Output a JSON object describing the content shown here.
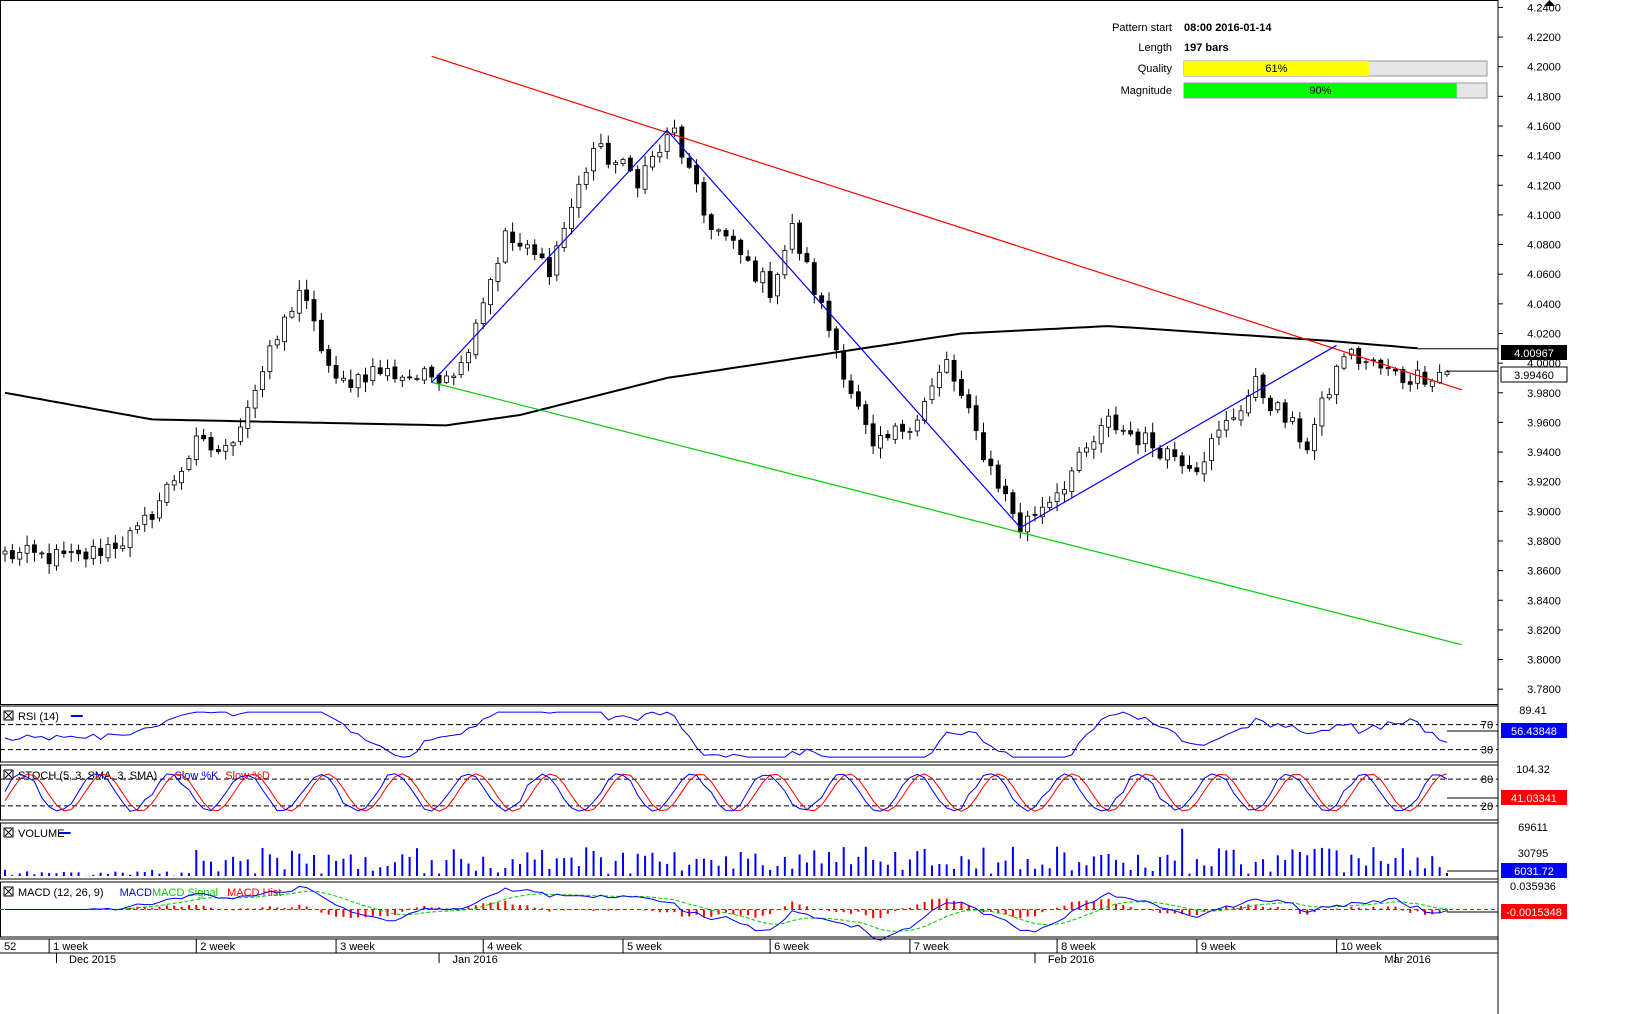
{
  "chart_data": {
    "type": "candlestick",
    "pattern_info": [
      {
        "label": "Pattern start",
        "value": "08:00 2016-01-14"
      },
      {
        "label": "Length",
        "value": "197 bars"
      },
      {
        "label": "Quality",
        "value": "61%",
        "percent": 61,
        "color": "#ffff00"
      },
      {
        "label": "Magnitude",
        "value": "90%",
        "percent": 90,
        "color": "#00ff00"
      }
    ],
    "price_axis": {
      "min": 3.77,
      "max": 4.245,
      "ticks": [
        "4.2400",
        "4.2200",
        "4.2000",
        "4.1800",
        "4.1600",
        "4.1400",
        "4.1200",
        "4.1000",
        "4.0800",
        "4.0600",
        "4.0400",
        "4.0200",
        "4.0000",
        "3.9800",
        "3.9600",
        "3.9400",
        "3.9200",
        "3.9000",
        "3.8800",
        "3.8600",
        "3.8400",
        "3.8200",
        "3.8000",
        "3.7800"
      ],
      "tick_values": [
        4.24,
        4.22,
        4.2,
        4.18,
        4.16,
        4.14,
        4.12,
        4.1,
        4.08,
        4.06,
        4.04,
        4.02,
        4.0,
        3.98,
        3.96,
        3.94,
        3.92,
        3.9,
        3.88,
        3.86,
        3.84,
        3.82,
        3.8,
        3.78
      ],
      "ma_value_label": "4.00967",
      "last_price_label": "3.99460"
    },
    "bar_count": 197,
    "key_points": [
      {
        "bar": 0,
        "price": 3.871
      },
      {
        "bar": 10,
        "price": 3.868
      },
      {
        "bar": 18,
        "price": 3.885
      },
      {
        "bar": 26,
        "price": 3.945
      },
      {
        "bar": 30,
        "price": 3.94
      },
      {
        "bar": 36,
        "price": 4.005
      },
      {
        "bar": 40,
        "price": 4.05
      },
      {
        "bar": 45,
        "price": 3.985
      },
      {
        "bar": 50,
        "price": 3.995
      },
      {
        "bar": 57,
        "price": 3.99
      },
      {
        "bar": 62,
        "price": 3.998
      },
      {
        "bar": 64,
        "price": 4.03
      },
      {
        "bar": 68,
        "price": 4.085
      },
      {
        "bar": 74,
        "price": 4.065
      },
      {
        "bar": 80,
        "price": 4.145
      },
      {
        "bar": 86,
        "price": 4.125
      },
      {
        "bar": 91,
        "price": 4.156
      },
      {
        "bar": 95,
        "price": 4.1
      },
      {
        "bar": 104,
        "price": 4.05
      },
      {
        "bar": 107,
        "price": 4.09
      },
      {
        "bar": 113,
        "price": 4.01
      },
      {
        "bar": 118,
        "price": 3.94
      },
      {
        "bar": 124,
        "price": 3.965
      },
      {
        "bar": 128,
        "price": 4.0
      },
      {
        "bar": 133,
        "price": 3.94
      },
      {
        "bar": 138,
        "price": 3.889
      },
      {
        "bar": 144,
        "price": 3.92
      },
      {
        "bar": 150,
        "price": 3.96
      },
      {
        "bar": 156,
        "price": 3.945
      },
      {
        "bar": 162,
        "price": 3.932
      },
      {
        "bar": 170,
        "price": 3.985
      },
      {
        "bar": 177,
        "price": 3.945
      },
      {
        "bar": 182,
        "price": 4.007
      },
      {
        "bar": 190,
        "price": 3.99
      },
      {
        "bar": 196,
        "price": 3.9946
      }
    ],
    "moving_average_points": [
      {
        "bar": 0,
        "price": 3.98
      },
      {
        "bar": 20,
        "price": 3.962
      },
      {
        "bar": 40,
        "price": 3.96
      },
      {
        "bar": 60,
        "price": 3.958
      },
      {
        "bar": 70,
        "price": 3.965
      },
      {
        "bar": 90,
        "price": 3.99
      },
      {
        "bar": 110,
        "price": 4.005
      },
      {
        "bar": 130,
        "price": 4.02
      },
      {
        "bar": 150,
        "price": 4.025
      },
      {
        "bar": 165,
        "price": 4.02
      },
      {
        "bar": 180,
        "price": 4.015
      },
      {
        "bar": 192,
        "price": 4.01
      }
    ],
    "pattern_lines": {
      "resistance": {
        "color": "#ff0000",
        "from": {
          "bar": 58,
          "price": 4.207
        },
        "to": {
          "bar": 198,
          "price": 3.982
        }
      },
      "support": {
        "color": "#00cc00",
        "from": {
          "bar": 58,
          "price": 3.987
        },
        "to": {
          "bar": 198,
          "price": 3.81
        }
      },
      "zigzag": {
        "color": "#0000ff",
        "points": [
          {
            "bar": 58,
            "price": 3.987
          },
          {
            "bar": 90,
            "price": 4.157
          },
          {
            "bar": 138,
            "price": 3.889
          },
          {
            "bar": 181,
            "price": 4.012
          }
        ]
      }
    },
    "time_axis": {
      "week_labels": [
        "52",
        "1 week",
        "2 week",
        "3 week",
        "4 week",
        "5 week",
        "6 week",
        "7 week",
        "8 week",
        "9 week",
        "10 week"
      ],
      "week_bars": [
        0,
        6,
        26,
        45,
        65,
        84,
        104,
        123,
        143,
        162,
        181
      ],
      "month_labels": [
        "Dec 2015",
        "Jan 2016",
        "Feb 2016",
        "Mar 2016"
      ],
      "month_bars": [
        10,
        62,
        143,
        192
      ]
    },
    "indicators": [
      {
        "name": "RSI",
        "title": "RSI (14)",
        "series_colors": [
          "#0000ff"
        ],
        "levels": [
          70,
          30
        ],
        "level_labels": [
          "70",
          "30"
        ],
        "top_label": "89.41",
        "value_labels": [
          "56.43848"
        ],
        "range": [
          15,
          95
        ]
      },
      {
        "name": "STOCH",
        "title": "STOCH (5, 3, SMA, 3, SMA)",
        "legend": [
          {
            "text": "Slow %K",
            "color": "#0000ff"
          },
          {
            "text": "Slow %D",
            "color": "#ff0000"
          }
        ],
        "levels": [
          80,
          20
        ],
        "level_labels": [
          "80",
          "20"
        ],
        "top_label": "104.32",
        "value_labels": [
          "41.03341"
        ],
        "range": [
          -5,
          105
        ]
      },
      {
        "name": "VOLUME",
        "title": "VOLUME",
        "series_colors": [
          "#0000ff"
        ],
        "top_label": "69611",
        "mid_label": "30795",
        "value_labels": [
          "6031.72"
        ],
        "range": [
          0,
          70000
        ]
      },
      {
        "name": "MACD",
        "title": "MACD (12, 26, 9)",
        "legend": [
          {
            "text": "MACD",
            "color": "#0000ff"
          },
          {
            "text": "MACD Signal",
            "color": "#00cc00"
          },
          {
            "text": "MACD Hist",
            "color": "#ff0000"
          }
        ],
        "top_label": "0.035936",
        "value_labels": [
          "-0.0015348"
        ],
        "range": [
          -0.04,
          0.04
        ]
      }
    ]
  }
}
